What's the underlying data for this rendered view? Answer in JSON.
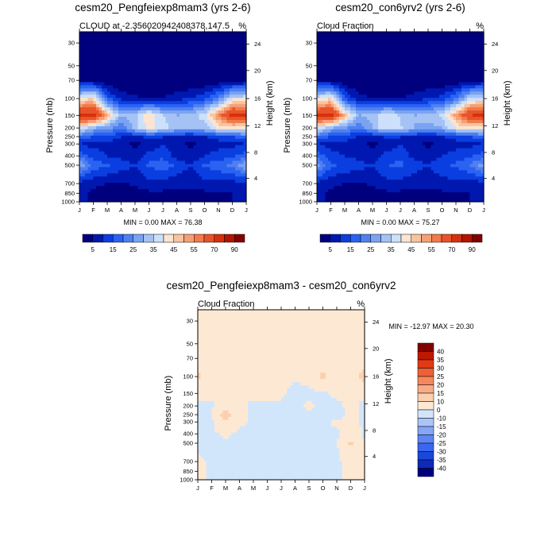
{
  "colors": {
    "base_palette": [
      "#00007f",
      "#0018b0",
      "#0a3ee0",
      "#2a63f2",
      "#5080f0",
      "#7aa3f2",
      "#a4c2f4",
      "#cce0fb",
      "#fce4d0",
      "#f8c4a0",
      "#f69f74",
      "#f27a4b",
      "#e85428",
      "#d6300e",
      "#b31400",
      "#820000"
    ],
    "diff_palette": [
      "#00007f",
      "#0d2ab8",
      "#1a48d8",
      "#3a66f0",
      "#5d86f4",
      "#85a6f5",
      "#aac4f6",
      "#d2e6fb",
      "#fde9d3",
      "#fbd0ae",
      "#f8ac86",
      "#f5875e",
      "#ef6036",
      "#e23a12",
      "#bb1a00",
      "#820000"
    ],
    "missing_band": "#ffffff"
  },
  "chart_data": [
    {
      "type": "heatmap",
      "panel": "model-a",
      "title": "cesm20_Pengfeiexp8mam3 (yrs 2-6)",
      "subtitle_left": "CLOUD at -2.356020942408378,147.5",
      "subtitle_right": "%",
      "ylabel": "Pressure (mb)",
      "y2label": "Height (km)",
      "x_ticks": [
        "J",
        "F",
        "M",
        "A",
        "M",
        "J",
        "J",
        "A",
        "S",
        "O",
        "N",
        "D",
        "J"
      ],
      "pressure_ticks": [
        "30",
        "50",
        "70",
        "100",
        "150",
        "200",
        "250",
        "300",
        "400",
        "500",
        "700",
        "850",
        "1000"
      ],
      "height_ticks": [
        "24",
        "20",
        "16",
        "12",
        "8",
        "4"
      ],
      "stats": "MIN =   0.00 MAX =  76.38",
      "levels": [
        5,
        10,
        15,
        20,
        25,
        30,
        35,
        40,
        45,
        50,
        55,
        60,
        70,
        80,
        90
      ],
      "cbar_labels": [
        "5",
        "15",
        "25",
        "35",
        "45",
        "55",
        "70",
        "90"
      ],
      "pressure_levels": [
        30,
        50,
        70,
        100,
        150,
        200,
        250,
        300,
        400,
        500,
        700,
        850,
        1000
      ],
      "values": [
        [
          0,
          0,
          0,
          0,
          0,
          0,
          0,
          0,
          0,
          0,
          0,
          0,
          0
        ],
        [
          0,
          0,
          0,
          0,
          0,
          0,
          0,
          0,
          0,
          0,
          0,
          0,
          0
        ],
        [
          4,
          3,
          1,
          0,
          0,
          0,
          0,
          0,
          0,
          0,
          1,
          2,
          4
        ],
        [
          40,
          45,
          16,
          8,
          6,
          5,
          5,
          8,
          10,
          14,
          22,
          38,
          40
        ],
        [
          72,
          76,
          50,
          30,
          33,
          44,
          35,
          30,
          32,
          38,
          55,
          74,
          72
        ],
        [
          40,
          30,
          27,
          20,
          33,
          42,
          38,
          32,
          30,
          32,
          41,
          42,
          40
        ],
        [
          20,
          15,
          14,
          10,
          8,
          12,
          10,
          9,
          8,
          10,
          12,
          15,
          20
        ],
        [
          10,
          8,
          8,
          6,
          4,
          6,
          10,
          6,
          4,
          6,
          8,
          8,
          10
        ],
        [
          18,
          13,
          10,
          8,
          6,
          12,
          14,
          8,
          6,
          10,
          12,
          14,
          18
        ],
        [
          30,
          18,
          16,
          13,
          10,
          16,
          18,
          14,
          10,
          16,
          18,
          22,
          30
        ],
        [
          8,
          6,
          5,
          4,
          6,
          8,
          8,
          6,
          6,
          8,
          8,
          8,
          8
        ],
        [
          6,
          4,
          3,
          2,
          3,
          4,
          4,
          4,
          4,
          4,
          5,
          5,
          6
        ],
        [
          6,
          4,
          2,
          2,
          2,
          3,
          3,
          3,
          3,
          4,
          4,
          5,
          6
        ]
      ]
    },
    {
      "type": "heatmap",
      "panel": "model-b",
      "title": "cesm20_con6yrv2 (yrs 2-6)",
      "subtitle_left": "Cloud Fraction",
      "subtitle_right": "%",
      "ylabel": "Pressure (mb)",
      "y2label": "Height (km)",
      "x_ticks": [
        "J",
        "F",
        "M",
        "A",
        "M",
        "J",
        "J",
        "A",
        "S",
        "O",
        "N",
        "D",
        "J"
      ],
      "pressure_ticks": [
        "30",
        "50",
        "70",
        "100",
        "150",
        "200",
        "250",
        "300",
        "400",
        "500",
        "700",
        "850",
        "1000"
      ],
      "height_ticks": [
        "24",
        "20",
        "16",
        "12",
        "8",
        "4"
      ],
      "stats": "MIN =   0.00 MAX =  75.27",
      "levels": [
        5,
        10,
        15,
        20,
        25,
        30,
        35,
        40,
        45,
        50,
        55,
        60,
        70,
        80,
        90
      ],
      "cbar_labels": [
        "5",
        "15",
        "25",
        "35",
        "45",
        "55",
        "70",
        "90"
      ],
      "pressure_levels": [
        30,
        50,
        70,
        100,
        150,
        200,
        250,
        300,
        400,
        500,
        700,
        850,
        1000
      ],
      "values": [
        [
          0,
          0,
          0,
          0,
          0,
          0,
          0,
          0,
          0,
          0,
          0,
          0,
          0
        ],
        [
          0,
          0,
          0,
          0,
          0,
          0,
          0,
          0,
          0,
          0,
          0,
          0,
          0
        ],
        [
          4,
          3,
          1,
          0,
          0,
          0,
          0,
          0,
          0,
          0,
          1,
          2,
          4
        ],
        [
          38,
          44,
          15,
          7,
          5,
          5,
          5,
          7,
          10,
          12,
          20,
          36,
          38
        ],
        [
          72,
          75,
          48,
          30,
          32,
          40,
          34,
          30,
          32,
          36,
          52,
          70,
          72
        ],
        [
          40,
          30,
          26,
          20,
          30,
          40,
          36,
          30,
          28,
          30,
          40,
          42,
          40
        ],
        [
          20,
          14,
          13,
          10,
          8,
          11,
          10,
          9,
          8,
          10,
          12,
          15,
          20
        ],
        [
          10,
          8,
          8,
          6,
          4,
          6,
          10,
          6,
          4,
          6,
          8,
          8,
          10
        ],
        [
          18,
          12,
          10,
          8,
          6,
          12,
          14,
          8,
          6,
          10,
          12,
          14,
          18
        ],
        [
          28,
          16,
          14,
          12,
          10,
          15,
          16,
          13,
          10,
          14,
          16,
          20,
          28
        ],
        [
          8,
          6,
          5,
          4,
          6,
          8,
          8,
          6,
          6,
          8,
          8,
          8,
          8
        ],
        [
          6,
          4,
          3,
          2,
          3,
          4,
          4,
          4,
          4,
          4,
          5,
          5,
          6
        ],
        [
          6,
          4,
          2,
          2,
          2,
          3,
          3,
          3,
          3,
          4,
          4,
          5,
          6
        ]
      ]
    },
    {
      "type": "heatmap",
      "panel": "difference",
      "title": "cesm20_Pengfeiexp8mam3 - cesm20_con6yrv2",
      "subtitle_left": "Cloud Fraction",
      "subtitle_right": "%",
      "ylabel": "Pressure (mb)",
      "y2label": "Height (km)",
      "x_ticks": [
        "J",
        "F",
        "M",
        "A",
        "M",
        "J",
        "J",
        "A",
        "S",
        "O",
        "N",
        "D",
        "J"
      ],
      "pressure_ticks": [
        "30",
        "50",
        "70",
        "100",
        "150",
        "200",
        "250",
        "300",
        "400",
        "500",
        "700",
        "850",
        "1000"
      ],
      "height_ticks": [
        "24",
        "20",
        "16",
        "12",
        "8",
        "4"
      ],
      "stats": "MIN = -12.97 MAX =  20.30",
      "levels": [
        -40,
        -35,
        -30,
        -25,
        -20,
        -15,
        -10,
        0,
        10,
        15,
        20,
        25,
        30,
        35,
        40
      ],
      "cbar_labels": [
        "40",
        "35",
        "30",
        "25",
        "20",
        "15",
        "10",
        "0",
        "-10",
        "-15",
        "-20",
        "-25",
        "-30",
        "-35",
        "-40"
      ],
      "pressure_levels": [
        30,
        50,
        70,
        100,
        150,
        200,
        250,
        300,
        400,
        500,
        700,
        850,
        1000
      ],
      "values": [
        [
          1,
          1,
          1,
          1,
          1,
          1,
          1,
          1,
          1,
          1,
          1,
          1,
          1
        ],
        [
          1,
          1,
          1,
          1,
          1,
          1,
          1,
          1,
          1,
          1,
          1,
          1,
          1
        ],
        [
          1,
          1,
          1,
          1,
          1,
          1,
          1,
          1,
          1,
          1,
          1,
          1,
          1
        ],
        [
          14,
          2,
          11,
          1,
          1,
          1,
          1,
          1,
          2,
          13,
          1,
          1,
          16
        ],
        [
          1,
          1,
          2,
          1,
          1,
          1,
          1,
          -2,
          -2,
          -1,
          1,
          1,
          1
        ],
        [
          -1,
          -1,
          5,
          1,
          -1,
          -1,
          -1,
          -1,
          1,
          -1,
          -1,
          1,
          -1
        ],
        [
          -1,
          -1,
          17,
          1,
          -1,
          -1,
          -1,
          -1,
          -1,
          -1,
          -2,
          1,
          -1
        ],
        [
          -1,
          -1,
          7,
          1,
          -1,
          -1,
          -1,
          -1,
          -1,
          -1,
          1,
          1,
          -1
        ],
        [
          -1,
          -1,
          1,
          -1,
          -1,
          -1,
          -1,
          -1,
          -1,
          -1,
          -1,
          4,
          -1
        ],
        [
          -1,
          -1,
          -1,
          -1,
          -1,
          -5,
          -1,
          -1,
          -1,
          -1,
          -1,
          13,
          -1
        ],
        [
          1,
          -1,
          -1,
          -1,
          -1,
          -1,
          -1,
          -1,
          -1,
          -1,
          -1,
          1,
          1
        ],
        [
          1,
          -1,
          -1,
          -1,
          -1,
          -1,
          -1,
          -1,
          -1,
          -1,
          -1,
          1,
          1
        ],
        [
          1,
          -1,
          -1,
          -1,
          -1,
          -1,
          -1,
          -1,
          -1,
          -1,
          -1,
          1,
          1
        ]
      ]
    }
  ]
}
